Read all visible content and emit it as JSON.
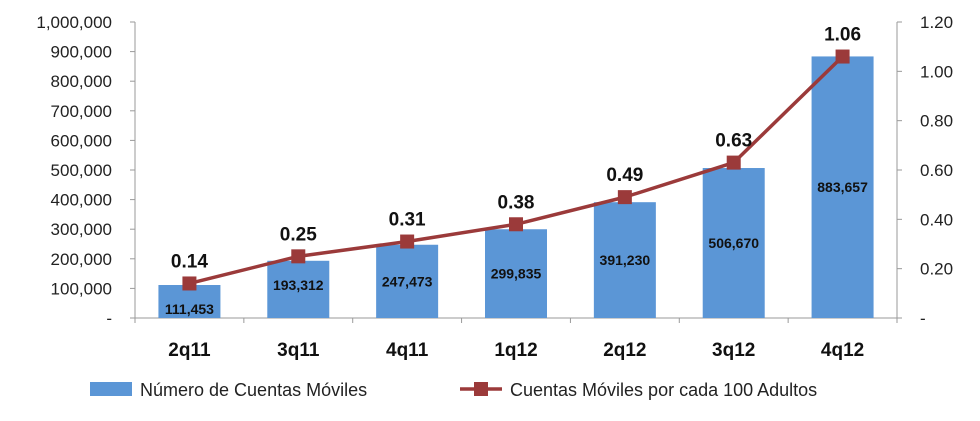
{
  "colors": {
    "bar": "#5b96d6",
    "line": "#9b3a3a",
    "axis": "#9a9a9a"
  },
  "legend": {
    "bar_label": "Número de Cuentas Móviles",
    "line_label": "Cuentas Móviles por cada 100 Adultos"
  },
  "chart_data": {
    "type": "bar",
    "categories": [
      "2q11",
      "3q11",
      "4q11",
      "1q12",
      "2q12",
      "3q12",
      "4q12"
    ],
    "series": [
      {
        "name": "Número de Cuentas Móviles",
        "type": "bar",
        "axis": "left",
        "values": [
          111453,
          193312,
          247473,
          299835,
          391230,
          506670,
          883657
        ],
        "labels": [
          "111,453",
          "193,312",
          "247,473",
          "299,835",
          "391,230",
          "506,670",
          "883,657"
        ]
      },
      {
        "name": "Cuentas Móviles por cada 100 Adultos",
        "type": "line",
        "axis": "right",
        "values": [
          0.14,
          0.25,
          0.31,
          0.38,
          0.49,
          0.63,
          1.06
        ],
        "labels": [
          "0.14",
          "0.25",
          "0.31",
          "0.38",
          "0.49",
          "0.63",
          "1.06"
        ]
      }
    ],
    "y_left": {
      "ylim": [
        0,
        1000000
      ],
      "ticks": [
        0,
        100000,
        200000,
        300000,
        400000,
        500000,
        600000,
        700000,
        800000,
        900000,
        1000000
      ],
      "tick_labels": [
        "-",
        "100,000",
        "200,000",
        "300,000",
        "400,000",
        "500,000",
        "600,000",
        "700,000",
        "800,000",
        "900,000",
        "1,000,000"
      ]
    },
    "y_right": {
      "ylim": [
        0,
        1.2
      ],
      "ticks": [
        0,
        0.2,
        0.4,
        0.6,
        0.8,
        1.0,
        1.2
      ],
      "tick_labels": [
        "-",
        "0.20",
        "0.40",
        "0.60",
        "0.80",
        "1.00",
        "1.20"
      ]
    },
    "grid": false,
    "legend_position": "bottom"
  }
}
